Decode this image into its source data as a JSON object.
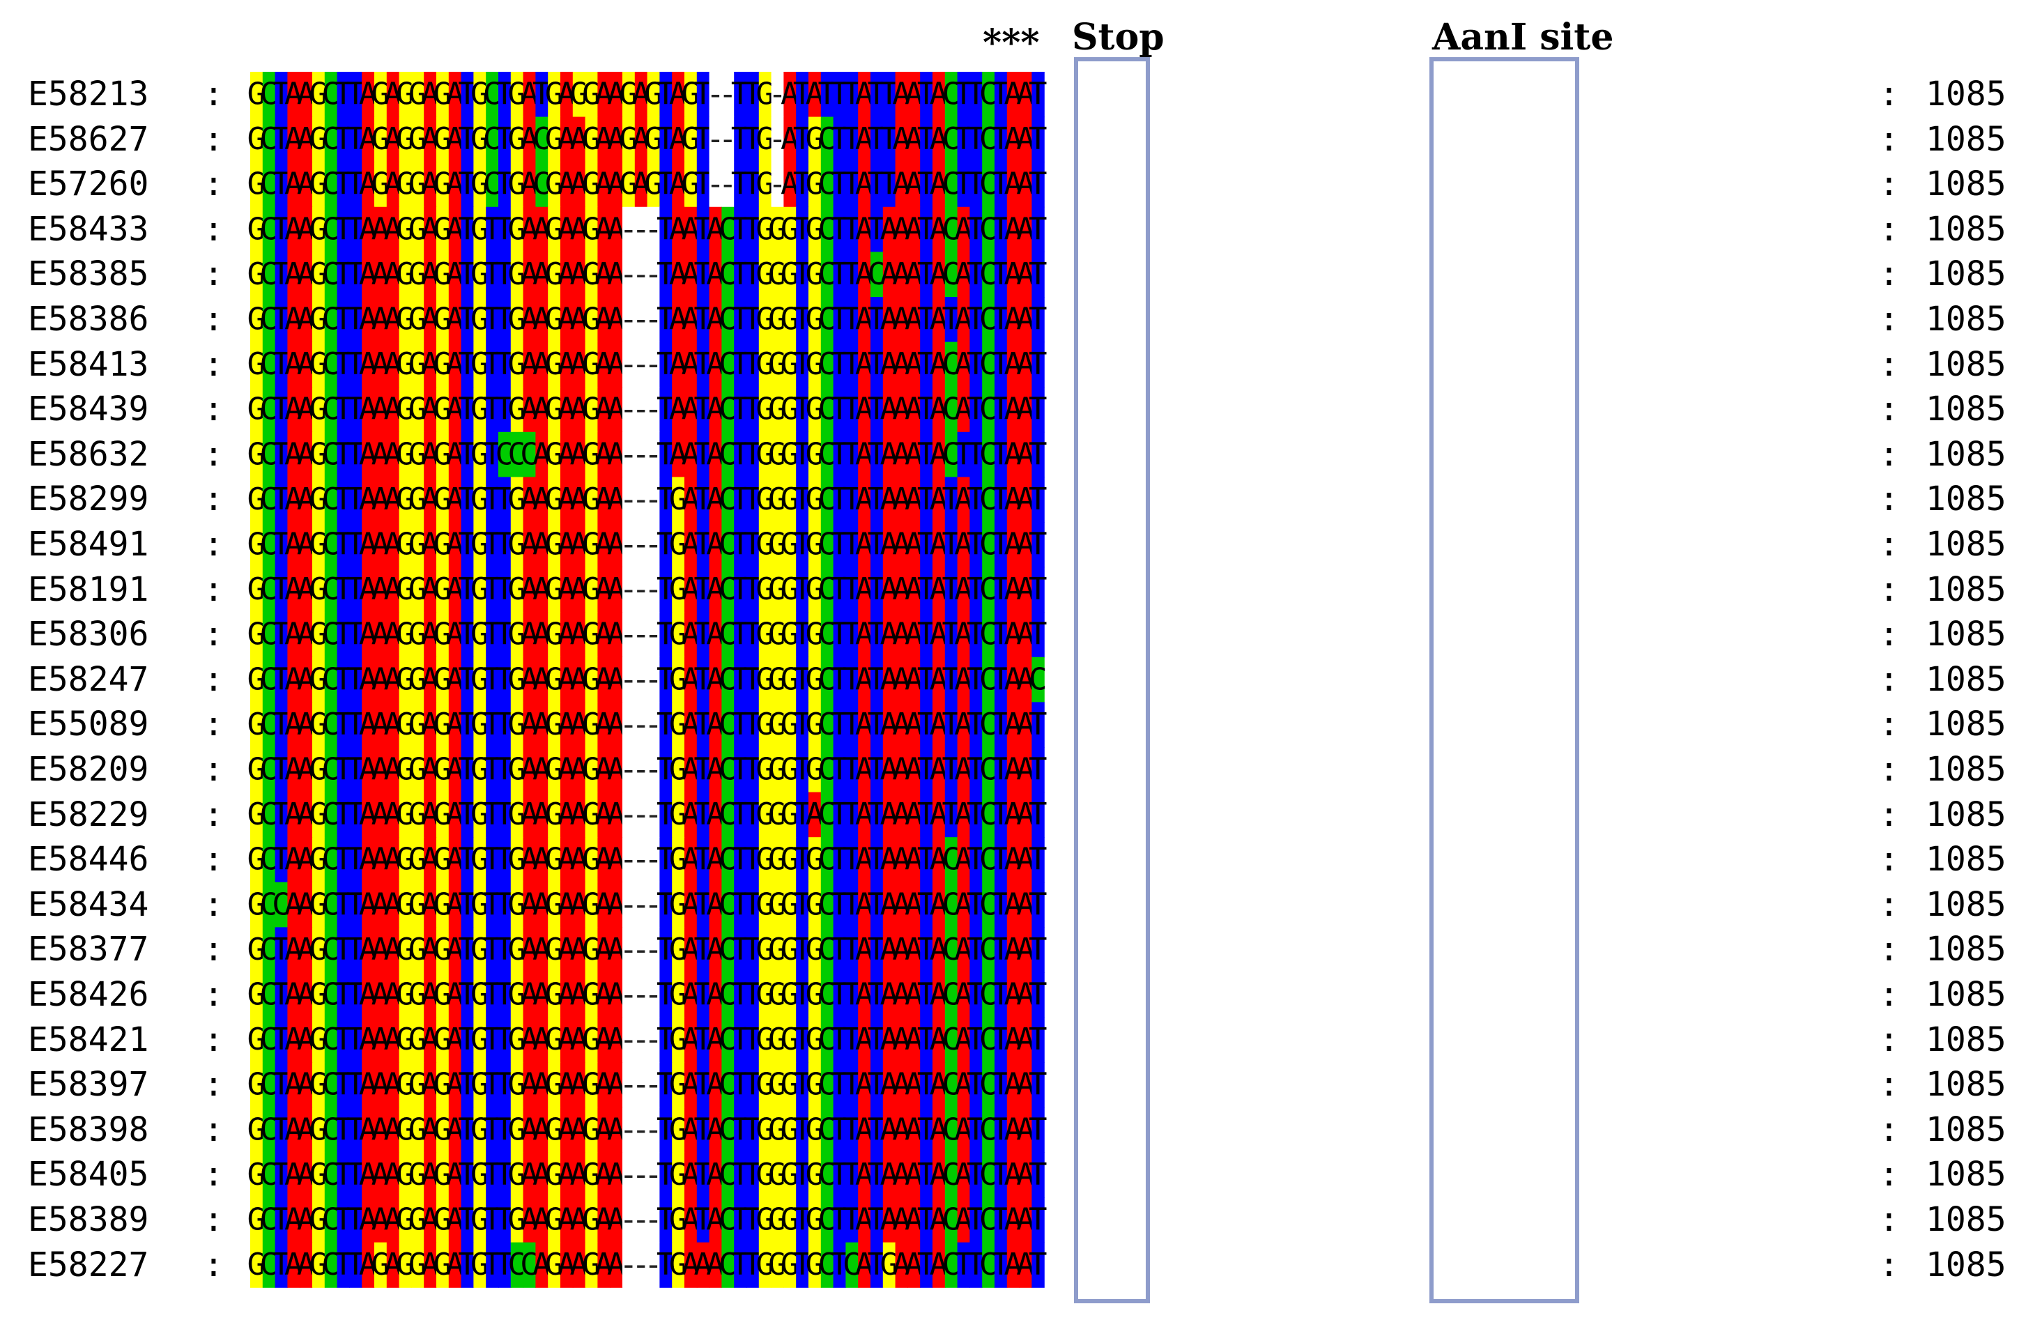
{
  "annotations": {
    "star": "***",
    "stop": "Stop",
    "aanI": "AanI site"
  },
  "separator": ":",
  "colors": {
    "A": "#ff0000",
    "T": "#0000ff",
    "G": "#ffff00",
    "C": "#00cc00",
    "-": "#ffffff"
  },
  "rows": [
    {
      "id": "E58213",
      "seq": "GCTAAGCTTAGAGGAGATGCTGATGAGGAAGAGTAGT--TTG-ATATTTATTAATACTTCTAAT",
      "pos": "1085"
    },
    {
      "id": "E58627",
      "seq": "GCTAAGCTTAGAGGAGATGCTGACGAAGAAGAGTAGT--TTG-ATGCTTATTAATACTTCTAAT",
      "pos": "1085"
    },
    {
      "id": "E57260",
      "seq": "GCTAAGCTTAGAGGAGATGCTGACGAAGAAGAGTAGT--TTG-ATGCTTATTAATACTTCTAAT",
      "pos": "1085"
    },
    {
      "id": "E58433",
      "seq": "GCTAAGCTTAAAGGAGATGTTGAAGAAGAA---TAATACTTGGGTGCTTATAAATACATCTAAT",
      "pos": "1085"
    },
    {
      "id": "E58385",
      "seq": "GCTAAGCTTAAAGGAGATGTTGAAGAAGAA---TAATACTTGGGTGCTTACAAATACATCTAAT",
      "pos": "1085"
    },
    {
      "id": "E58386",
      "seq": "GCTAAGCTTAAAGGAGATGTTGAAGAAGAA---TAATACTTGGGTGCTTATAAATATATCTAAT",
      "pos": "1085"
    },
    {
      "id": "E58413",
      "seq": "GCTAAGCTTAAAGGAGATGTTGAAGAAGAA---TAATACTTGGGTGCTTATAAATACATCTAAT",
      "pos": "1085"
    },
    {
      "id": "E58439",
      "seq": "GCTAAGCTTAAAGGAGATGTTGAAGAAGAA---TAATACTTGGGTGCTTATAAATACATCTAAT",
      "pos": "1085"
    },
    {
      "id": "E58632",
      "seq": "GCTAAGCTTAAAGGAGATGTCCCAGAAGAA---TAATACTTGGGTGCTTATAAATACTTCTAAT",
      "pos": "1085"
    },
    {
      "id": "E58299",
      "seq": "GCTAAGCTTAAAGGAGATGTTGAAGAAGAA---TGATACTTGGGTGCTTATAAATATATCTAAT",
      "pos": "1085"
    },
    {
      "id": "E58491",
      "seq": "GCTAAGCTTAAAGGAGATGTTGAAGAAGAA---TGATACTTGGGTGCTTATAAATATATCTAAT",
      "pos": "1085"
    },
    {
      "id": "E58191",
      "seq": "GCTAAGCTTAAAGGAGATGTTGAAGAAGAA---TGATACTTGGGTGCTTATAAATATATCTAAT",
      "pos": "1085"
    },
    {
      "id": "E58306",
      "seq": "GCTAAGCTTAAAGGAGATGTTGAAGAAGAA---TGATACTTGGGTGCTTATAAATATATCTAAT",
      "pos": "1085"
    },
    {
      "id": "E58247",
      "seq": "GCTAAGCTTAAAGGAGATGTTGAAGAAGAA---TGATACTTGGGTGCTTATAAATATATCTAAC",
      "pos": "1085"
    },
    {
      "id": "E55089",
      "seq": "GCTAAGCTTAAAGGAGATGTTGAAGAAGAA---TGATACTTGGGTGCTTATAAATATATCTAAT",
      "pos": "1085"
    },
    {
      "id": "E58209",
      "seq": "GCTAAGCTTAAAGGAGATGTTGAAGAAGAA---TGATACTTGGGTGCTTATAAATATATCTAAT",
      "pos": "1085"
    },
    {
      "id": "E58229",
      "seq": "GCTAAGCTTAAAGGAGATGTTGAAGAAGAA---TGATACTTGGGTACTTATAAATATATCTAAT",
      "pos": "1085"
    },
    {
      "id": "E58446",
      "seq": "GCTAAGCTTAAAGGAGATGTTGAAGAAGAA---TGATACTTGGGTGCTTATAAATACATCTAAT",
      "pos": "1085"
    },
    {
      "id": "E58434",
      "seq": "GCCAAGCTTAAAGGAGATGTTGAAGAAGAA---TGATACTTGGGTGCTTATAAATACATCTAAT",
      "pos": "1085"
    },
    {
      "id": "E58377",
      "seq": "GCTAAGCTTAAAGGAGATGTTGAAGAAGAA---TGATACTTGGGTGCTTATAAATACATCTAAT",
      "pos": "1085"
    },
    {
      "id": "E58426",
      "seq": "GCTAAGCTTAAAGGAGATGTTGAAGAAGAA---TGATACTTGGGTGCTTATAAATACATCTAAT",
      "pos": "1085"
    },
    {
      "id": "E58421",
      "seq": "GCTAAGCTTAAAGGAGATGTTGAAGAAGAA---TGATACTTGGGTGCTTATAAATACATCTAAT",
      "pos": "1085"
    },
    {
      "id": "E58397",
      "seq": "GCTAAGCTTAAAGGAGATGTTGAAGAAGAA---TGATACTTGGGTGCTTATAAATACATCTAAT",
      "pos": "1085"
    },
    {
      "id": "E58398",
      "seq": "GCTAAGCTTAAAGGAGATGTTGAAGAAGAA---TGATACTTGGGTGCTTATAAATACATCTAAT",
      "pos": "1085"
    },
    {
      "id": "E58405",
      "seq": "GCTAAGCTTAAAGGAGATGTTGAAGAAGAA---TGATACTTGGGTGCTTATAAATACATCTAAT",
      "pos": "1085"
    },
    {
      "id": "E58389",
      "seq": "GCTAAGCTTAAAGGAGATGTTGAAGAAGAA---TGATACTTGGGTGCTTATAAATACATCTAAT",
      "pos": "1085"
    },
    {
      "id": "E58227",
      "seq": "GCTAAGCTTAGAGGAGATGTTCCAGAAGAA---TGAAACTTGGGTGCTCATGAATACTTCTAAT",
      "pos": "1085"
    }
  ]
}
